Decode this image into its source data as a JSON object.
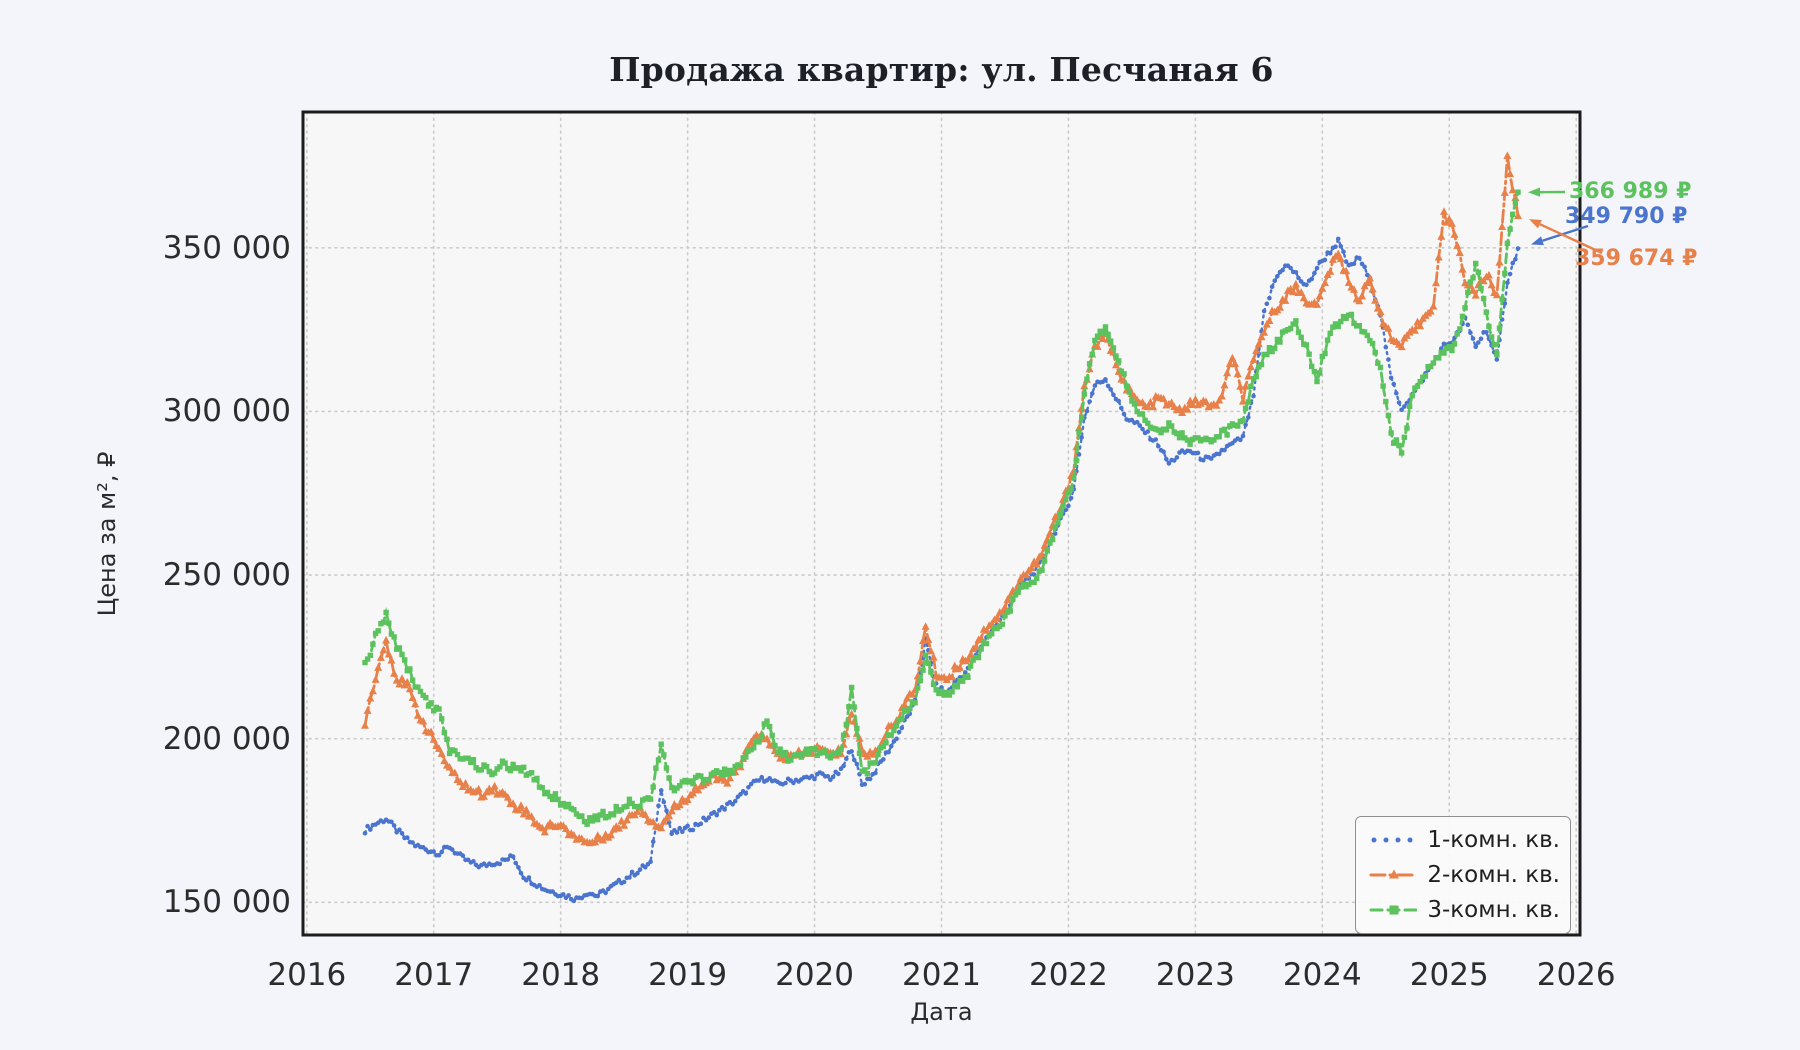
{
  "title": "Продажа квартир: ул. Песчаная 6",
  "axes": {
    "xlabel": "Дата",
    "ylabel": "Цена за м², ₽",
    "x_ticks": [
      2016,
      2017,
      2018,
      2019,
      2020,
      2021,
      2022,
      2023,
      2024,
      2025,
      2026
    ],
    "y_ticks": [
      {
        "value": 150000,
        "label": "150 000"
      },
      {
        "value": 200000,
        "label": "200 000"
      },
      {
        "value": 250000,
        "label": "250 000"
      },
      {
        "value": 300000,
        "label": "300 000"
      },
      {
        "value": 350000,
        "label": "350 000"
      }
    ]
  },
  "legend": {
    "items": [
      {
        "label": "1-комн. кв."
      },
      {
        "label": "2-комн. кв."
      },
      {
        "label": "3-комн. кв."
      }
    ]
  },
  "annotations": [
    {
      "text": "366 989 ₽",
      "series": "3-комн. кв.",
      "color": "#5cc25e",
      "value": 366989
    },
    {
      "text": "349 790 ₽",
      "series": "1-комн. кв.",
      "color": "#4a74cd",
      "value": 349790
    },
    {
      "text": "359 674 ₽",
      "series": "2-комн. кв.",
      "color": "#e8804a",
      "value": 359674
    }
  ],
  "chart_data": {
    "type": "line",
    "title": "Продажа квартир: ул. Песчаная 6",
    "xlabel": "Дата",
    "ylabel": "Цена за м², ₽",
    "grid": true,
    "legend_position": "lower right",
    "xlim": [
      2015.97,
      2026.03
    ],
    "ylim": [
      140000,
      391500
    ],
    "x_start": 2016.4583,
    "x_step_years": 0.0833333,
    "series": [
      {
        "name": "1-комн. кв.",
        "color": "#4a74cd",
        "linestyle": "dotted",
        "marker": "dot",
        "final_value": 349790,
        "values": [
          172000,
          174000,
          175500,
          172000,
          169000,
          167000,
          166000,
          165000,
          167000,
          164000,
          162000,
          161000,
          162000,
          162500,
          164000,
          158000,
          156000,
          154000,
          153000,
          152000,
          151000,
          153000,
          152000,
          154000,
          156000,
          158000,
          160000,
          162000,
          185000,
          171000,
          172000,
          173000,
          175000,
          177000,
          179000,
          181000,
          184000,
          187000,
          188000,
          186000,
          187000,
          187500,
          188000,
          189000,
          188000,
          190000,
          197000,
          186000,
          189000,
          194000,
          199000,
          205000,
          211000,
          230000,
          216000,
          214000,
          218000,
          221000,
          227000,
          232000,
          236000,
          241000,
          247000,
          250000,
          254000,
          262000,
          268000,
          276000,
          298000,
          308000,
          310000,
          304000,
          298000,
          296000,
          293000,
          290000,
          284000,
          287000,
          288000,
          286000,
          285000,
          288000,
          290000,
          292000,
          305000,
          330000,
          340000,
          345000,
          342000,
          338000,
          344000,
          348000,
          352000,
          344000,
          347000,
          340000,
          330000,
          310000,
          301000,
          305000,
          310000,
          315000,
          320000,
          322000,
          328000,
          320000,
          325000,
          315000,
          340000,
          349790
        ]
      },
      {
        "name": "2-комн. кв.",
        "color": "#e8804a",
        "linestyle": "dashdot",
        "marker": "triangle",
        "final_value": 359674,
        "values": [
          205000,
          219000,
          230000,
          218000,
          216000,
          208000,
          202000,
          197000,
          190000,
          187000,
          184000,
          183000,
          185000,
          183000,
          180000,
          178000,
          175000,
          172000,
          174000,
          172000,
          170000,
          168000,
          169000,
          171000,
          173000,
          176000,
          179000,
          175000,
          173000,
          178000,
          181000,
          184000,
          186000,
          188000,
          187000,
          189000,
          195000,
          202000,
          199000,
          195000,
          194000,
          195000,
          196000,
          197000,
          195000,
          196000,
          208000,
          196000,
          195000,
          200000,
          205000,
          210000,
          215000,
          234000,
          220000,
          218000,
          222000,
          225000,
          230000,
          235000,
          238000,
          243000,
          249000,
          252000,
          256000,
          265000,
          272000,
          283000,
          307000,
          320000,
          323000,
          315000,
          307000,
          303000,
          301000,
          304000,
          302000,
          300000,
          302000,
          303000,
          301000,
          304000,
          317000,
          304000,
          315000,
          325000,
          331000,
          335000,
          338000,
          334000,
          332000,
          342000,
          348000,
          340000,
          334000,
          340000,
          330000,
          322000,
          320000,
          324000,
          328000,
          333000,
          360000,
          355000,
          340000,
          336000,
          342000,
          335000,
          378000,
          359674
        ]
      },
      {
        "name": "3-комн. кв.",
        "color": "#5cc25e",
        "linestyle": "dashed",
        "marker": "square",
        "final_value": 366989,
        "values": [
          222000,
          231000,
          238000,
          228000,
          222000,
          215000,
          211000,
          208000,
          196000,
          195000,
          193000,
          191000,
          190000,
          192000,
          191000,
          190000,
          188000,
          184000,
          182000,
          180000,
          177000,
          175000,
          176000,
          177000,
          179000,
          181000,
          180000,
          182000,
          199000,
          184000,
          186000,
          187000,
          188000,
          189000,
          190000,
          191000,
          194000,
          198000,
          205000,
          196000,
          194000,
          195000,
          196000,
          196000,
          194000,
          196000,
          215000,
          189000,
          192000,
          198000,
          203000,
          208000,
          212000,
          225000,
          214000,
          213000,
          217000,
          220000,
          226000,
          231000,
          235000,
          240000,
          246000,
          248000,
          252000,
          262000,
          270000,
          280000,
          305000,
          322000,
          325000,
          318000,
          308000,
          300000,
          297000,
          294000,
          296000,
          293000,
          291000,
          292000,
          290000,
          293000,
          295000,
          298000,
          310000,
          317000,
          320000,
          324000,
          327000,
          320000,
          310000,
          322000,
          327000,
          330000,
          326000,
          322000,
          313000,
          293000,
          287000,
          305000,
          311000,
          315000,
          318000,
          320000,
          332000,
          345000,
          330000,
          317000,
          352000,
          366989
        ]
      }
    ]
  },
  "style": {
    "figure_bg": "#f3f5fa",
    "axes_bg": "#f7f7f7",
    "grid_color": "#cbcbcb",
    "spine_color": "#1c1c1c"
  }
}
